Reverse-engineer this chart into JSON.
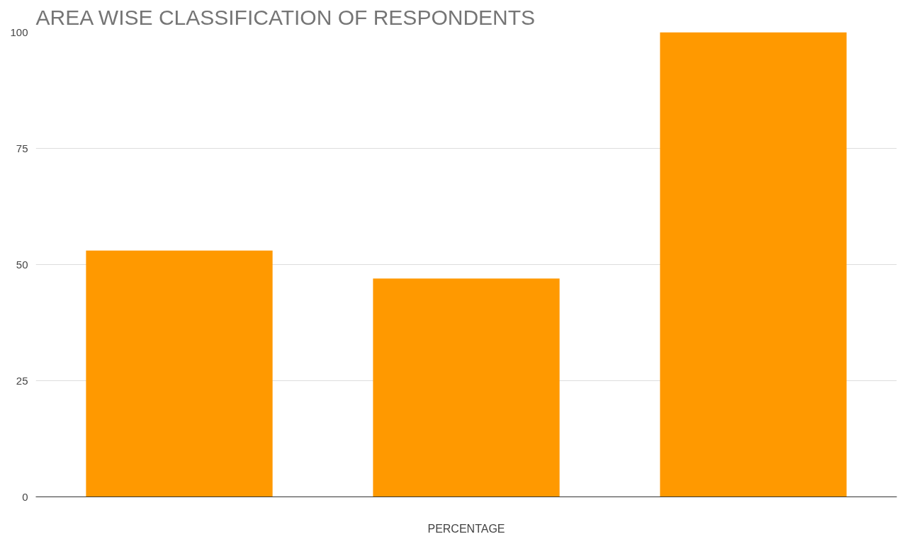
{
  "chart_data": {
    "type": "bar",
    "title": "AREA WISE CLASSIFICATION OF RESPONDENTS",
    "xlabel": "PERCENTAGE",
    "categories": [
      null,
      null,
      null
    ],
    "values": [
      53,
      47,
      100
    ],
    "color": "#ff9900",
    "ylim": [
      0,
      100
    ],
    "yticks": [
      0,
      25,
      50,
      75,
      100
    ],
    "grid": "y"
  }
}
